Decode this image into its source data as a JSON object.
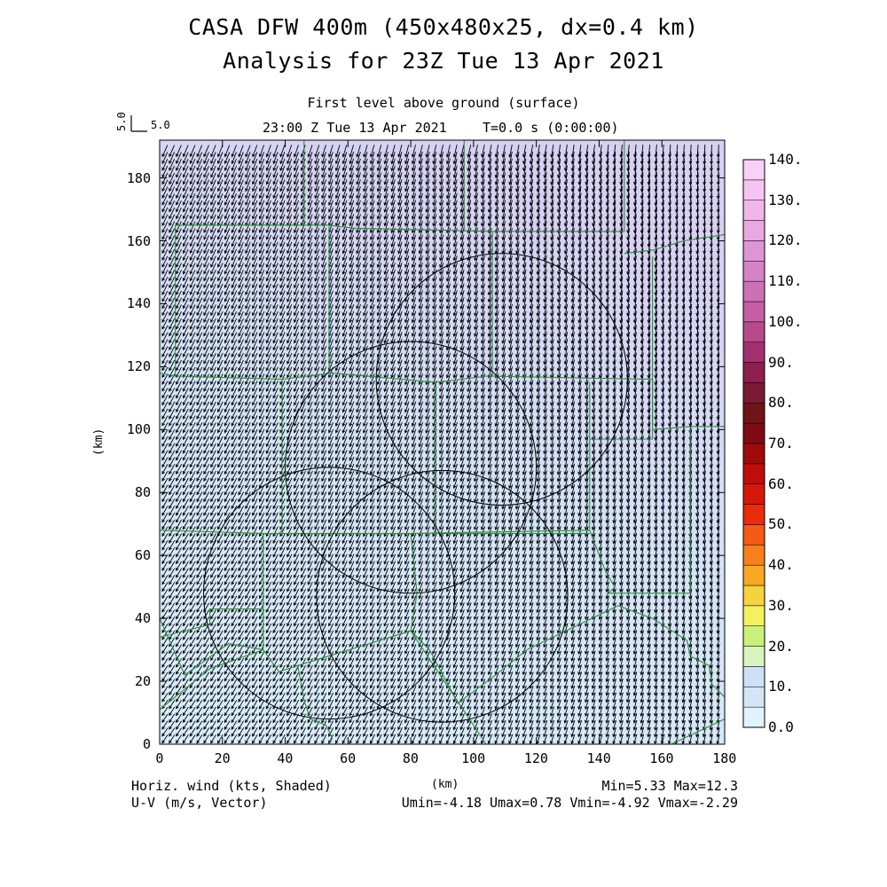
{
  "header": {
    "title": "CASA DFW 400m (450x480x25, dx=0.4 km)",
    "subtitle": "Analysis for 23Z Tue 13 Apr 2021",
    "level": "First level above ground (surface)",
    "time": "23:00 Z Tue 13 Apr 2021",
    "t_label": "T=0.0 s (0:00:00)"
  },
  "reference_vector": {
    "label_vertical": "5.0",
    "label_horizontal": "5.0"
  },
  "axes": {
    "x_label": "(km)",
    "y_label": "(km)",
    "x_ticks": [
      "0",
      "20",
      "40",
      "60",
      "80",
      "100",
      "120",
      "140",
      "160",
      "180"
    ],
    "y_ticks": [
      "0",
      "20",
      "40",
      "60",
      "80",
      "100",
      "120",
      "140",
      "160",
      "180"
    ],
    "x_range": [
      0,
      180
    ],
    "y_range": [
      0,
      192
    ]
  },
  "colorbar": {
    "labels": [
      "0.0",
      "10.",
      "20.",
      "30.",
      "40.",
      "50.",
      "60.",
      "70.",
      "80.",
      "90.",
      "100.",
      "110.",
      "120.",
      "130.",
      "140."
    ],
    "colors": [
      "#e0f2fb",
      "#d3e6f6",
      "#cde0f7",
      "#d8f5c0",
      "#c9f07a",
      "#f4f060",
      "#f6d23e",
      "#f9a821",
      "#f8801c",
      "#f45a14",
      "#e82c0c",
      "#d8170b",
      "#c00d0a",
      "#a00a0a",
      "#800a14",
      "#701418",
      "#7a1a34",
      "#8e1f4e",
      "#a42f6e",
      "#b84a8c",
      "#c45fa5",
      "#cc70b8",
      "#d583c8",
      "#de95d6",
      "#e8a8e2",
      "#f0b6ea",
      "#f6c4f2",
      "#f9d0f6"
    ]
  },
  "footer": {
    "left_line1": "Horiz. wind (kts, Shaded)",
    "left_line2": "U-V (m/s, Vector)",
    "center": "(km)",
    "right_line1": "Min=5.33 Max=12.3",
    "right_line2": "Umin=-4.18 Umax=0.78 Vmin=-4.92 Vmax=-2.29"
  },
  "colors": {
    "county_lines": "#2e8b3e",
    "radar_rings": "#000000",
    "vectors": "#000000",
    "field_low": "#d6ecfa",
    "field_high": "#d6d2f4"
  },
  "radar_rings_km": [
    {
      "cx": 54,
      "cy": 48,
      "r": 40
    },
    {
      "cx": 80,
      "cy": 88,
      "r": 40
    },
    {
      "cx": 90,
      "cy": 47,
      "r": 40
    },
    {
      "cx": 109,
      "cy": 116,
      "r": 40
    }
  ]
}
